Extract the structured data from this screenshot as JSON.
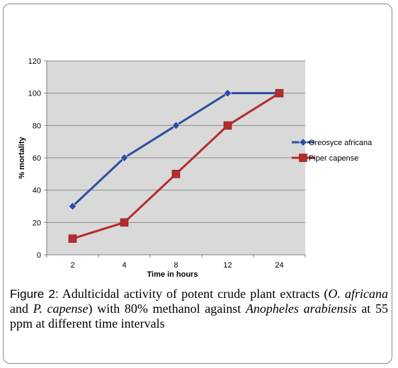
{
  "chart_data": {
    "type": "line",
    "categories": [
      "2",
      "4",
      "8",
      "12",
      "24"
    ],
    "series": [
      {
        "name": "Oreosyce africana",
        "values": [
          30,
          60,
          80,
          100,
          100
        ],
        "color": "#2B4FA0",
        "marker": "diamond"
      },
      {
        "name": "Piper capense",
        "values": [
          10,
          20,
          50,
          80,
          100
        ],
        "color": "#B52C2C",
        "marker": "square"
      }
    ],
    "xlabel": "Time in hours",
    "ylabel": "% mortality",
    "ylim": [
      0,
      120
    ],
    "yticks": [
      0,
      20,
      40,
      60,
      80,
      100,
      120
    ],
    "grid": true,
    "plot_background": "#D9D9D9",
    "legend_position": "right"
  },
  "caption": {
    "label": "Figure 2:",
    "text_1": " Adulticidal activity of potent crude plant extracts (",
    "species_1": "O. africana",
    "text_2": " and ",
    "species_2": "P. capense",
    "text_3": ") with 80% methanol against ",
    "species_3": "Anopheles arabiensis",
    "text_4": " at 55 ppm at different time intervals"
  }
}
